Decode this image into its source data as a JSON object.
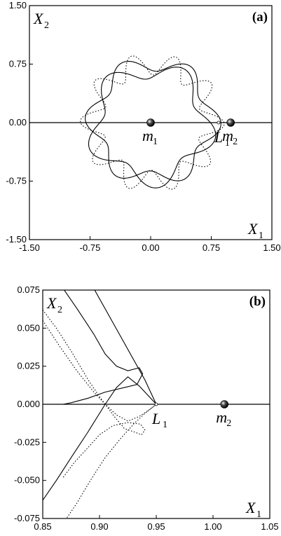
{
  "chart_data": [
    {
      "type": "line",
      "panel_label": "(a)",
      "xlabel": "X",
      "xlabel_sub": "1",
      "ylabel": "X",
      "ylabel_sub": "2",
      "xlim": [
        -1.5,
        1.5
      ],
      "ylim": [
        -1.5,
        1.5
      ],
      "xticks": [
        -1.5,
        -0.75,
        0.0,
        0.75,
        1.5
      ],
      "yticks": [
        -1.5,
        -0.75,
        0.0,
        0.75,
        1.5
      ],
      "xtick_labels": [
        "-1.50",
        "-0.75",
        "0.00",
        "0.75",
        "1.50"
      ],
      "ytick_labels": [
        "-1.50",
        "-0.75",
        "0.00",
        "0.75",
        "1.50"
      ],
      "grid": false,
      "reference_line_y": 0,
      "series": [
        {
          "style": "solid",
          "form": "rosette",
          "values": {
            "r0": 0.74,
            "amp": 0.1,
            "lobes": 6,
            "phase": 0.3,
            "cx": 0.03,
            "cy": 0.02,
            "turns": 1
          }
        },
        {
          "style": "solid",
          "form": "rosette",
          "values": {
            "r0": 0.7,
            "amp": 0.12,
            "lobes": 5,
            "phase": 1.1,
            "cx": 0.0,
            "cy": -0.02,
            "turns": 1
          }
        },
        {
          "style": "dotted",
          "form": "rosette",
          "values": {
            "r0": 0.75,
            "amp": 0.14,
            "lobes": 10,
            "phase": 0.2,
            "cx": 0.02,
            "cy": 0.0,
            "turns": 1
          }
        }
      ],
      "annotations": [
        {
          "text": "m",
          "sub": "1",
          "x": 0.0,
          "y": 0.0,
          "kind": "mass"
        },
        {
          "text": "m",
          "sub": "2",
          "x": 0.99,
          "y": 0.0,
          "kind": "mass"
        },
        {
          "text": "L",
          "sub": "1",
          "x": 0.84,
          "y": 0.0,
          "kind": "point"
        }
      ]
    },
    {
      "type": "line",
      "panel_label": "(b)",
      "xlabel": "X",
      "xlabel_sub": "1",
      "ylabel": "X",
      "ylabel_sub": "2",
      "xlim": [
        0.85,
        1.05
      ],
      "ylim": [
        -0.075,
        0.075
      ],
      "xticks": [
        0.85,
        0.9,
        0.95,
        1.0,
        1.05
      ],
      "yticks": [
        -0.075,
        -0.05,
        -0.025,
        0.0,
        0.025,
        0.05,
        0.075
      ],
      "xtick_labels": [
        "0.85",
        "0.90",
        "0.95",
        "1.00",
        "1.05"
      ],
      "ytick_labels": [
        "-0.075",
        "-0.050",
        "-0.025",
        "0.000",
        "0.025",
        "0.050",
        "0.075"
      ],
      "grid": false,
      "reference_line_y": 0,
      "series": [
        {
          "style": "solid",
          "form": "path",
          "points": [
            [
              0.868,
              0.076
            ],
            [
              0.88,
              0.063
            ],
            [
              0.895,
              0.046
            ],
            [
              0.905,
              0.033
            ],
            [
              0.915,
              0.025
            ],
            [
              0.925,
              0.022
            ],
            [
              0.935,
              0.024
            ],
            [
              0.938,
              0.02
            ],
            [
              0.933,
              0.013
            ],
            [
              0.922,
              0.011
            ],
            [
              0.905,
              0.008
            ],
            [
              0.89,
              0.004
            ],
            [
              0.875,
              0.001
            ],
            [
              0.868,
              0.0
            ]
          ]
        },
        {
          "style": "solid",
          "form": "path",
          "points": [
            [
              0.85,
              -0.063
            ],
            [
              0.862,
              -0.05
            ],
            [
              0.875,
              -0.035
            ],
            [
              0.89,
              -0.018
            ],
            [
              0.905,
              0.0
            ],
            [
              0.915,
              0.011
            ],
            [
              0.925,
              0.018
            ],
            [
              0.935,
              0.012
            ],
            [
              0.945,
              0.004
            ],
            [
              0.95,
              0.0
            ]
          ]
        },
        {
          "style": "solid",
          "form": "path",
          "points": [
            [
              0.895,
              0.076
            ],
            [
              0.91,
              0.056
            ],
            [
              0.925,
              0.036
            ],
            [
              0.94,
              0.016
            ],
            [
              0.95,
              0.0
            ]
          ]
        },
        {
          "style": "dotted",
          "form": "path",
          "points": [
            [
              0.85,
              0.062
            ],
            [
              0.862,
              0.05
            ],
            [
              0.875,
              0.035
            ],
            [
              0.89,
              0.016
            ],
            [
              0.9,
              0.005
            ],
            [
              0.905,
              0.0
            ],
            [
              0.913,
              -0.008
            ],
            [
              0.922,
              -0.016
            ],
            [
              0.93,
              -0.018
            ],
            [
              0.937,
              -0.02
            ],
            [
              0.94,
              -0.017
            ],
            [
              0.936,
              -0.013
            ],
            [
              0.925,
              -0.012
            ],
            [
              0.912,
              -0.014
            ],
            [
              0.9,
              -0.02
            ],
            [
              0.888,
              -0.03
            ],
            [
              0.878,
              -0.038
            ],
            [
              0.868,
              -0.048
            ]
          ]
        },
        {
          "style": "dotted",
          "form": "path",
          "points": [
            [
              0.85,
              0.055
            ],
            [
              0.865,
              0.038
            ],
            [
              0.88,
              0.022
            ],
            [
              0.895,
              0.008
            ],
            [
              0.905,
              0.0
            ],
            [
              0.915,
              -0.007
            ],
            [
              0.925,
              -0.011
            ],
            [
              0.935,
              -0.008
            ],
            [
              0.945,
              -0.003
            ],
            [
              0.95,
              0.0
            ]
          ]
        },
        {
          "style": "dotted",
          "form": "path",
          "points": [
            [
              0.87,
              -0.076
            ],
            [
              0.88,
              -0.065
            ],
            [
              0.892,
              -0.05
            ],
            [
              0.905,
              -0.035
            ],
            [
              0.918,
              -0.023
            ],
            [
              0.93,
              -0.013
            ],
            [
              0.94,
              -0.006
            ],
            [
              0.95,
              0.0
            ]
          ]
        }
      ],
      "annotations": [
        {
          "text": "L",
          "sub": "1",
          "x": 0.95,
          "y": 0.0,
          "kind": "point"
        },
        {
          "text": "m",
          "sub": "2",
          "x": 1.01,
          "y": 0.0,
          "kind": "mass"
        }
      ]
    }
  ]
}
